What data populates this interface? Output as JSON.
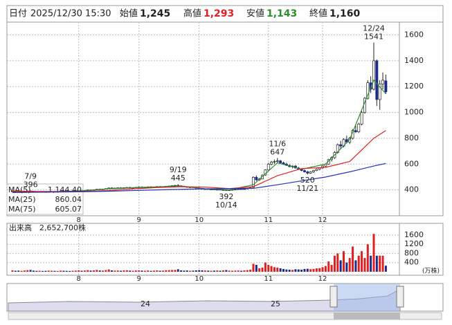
{
  "header": {
    "date_label": "日付",
    "date": "2025/12/30 15:30",
    "open_label": "始値",
    "open": "1,245",
    "high_label": "高値",
    "high": "1,293",
    "low_label": "安値",
    "low": "1,143",
    "close_label": "終値",
    "close": "1,160"
  },
  "chart_data": {
    "type": "candlestick",
    "ylim": [
      200,
      1710
    ],
    "yticks": [
      400,
      600,
      800,
      1000,
      1200,
      1400,
      1600
    ],
    "xticks": [
      {
        "value": 22,
        "label": "8"
      },
      {
        "value": 42,
        "label": "9"
      },
      {
        "value": 62,
        "label": "10"
      },
      {
        "value": 85,
        "label": "11"
      },
      {
        "value": 103,
        "label": "12"
      }
    ],
    "up_color": "#ffffff",
    "down_color": "#1e2a8a",
    "candles": [
      [
        388,
        392,
        384,
        390
      ],
      [
        390,
        393,
        386,
        389
      ],
      [
        389,
        391,
        385,
        387
      ],
      [
        387,
        390,
        383,
        388
      ],
      [
        388,
        392,
        386,
        391
      ],
      [
        391,
        394,
        388,
        392
      ],
      [
        392,
        396,
        389,
        390
      ],
      [
        390,
        392,
        385,
        386
      ],
      [
        386,
        389,
        382,
        384
      ],
      [
        384,
        388,
        381,
        387
      ],
      [
        387,
        390,
        384,
        385
      ],
      [
        385,
        388,
        381,
        383
      ],
      [
        383,
        387,
        380,
        386
      ],
      [
        386,
        390,
        384,
        388
      ],
      [
        388,
        391,
        385,
        386
      ],
      [
        386,
        389,
        383,
        387
      ],
      [
        387,
        392,
        385,
        390
      ],
      [
        390,
        394,
        387,
        389
      ],
      [
        389,
        392,
        385,
        388
      ],
      [
        388,
        391,
        384,
        386
      ],
      [
        386,
        390,
        383,
        389
      ],
      [
        389,
        393,
        386,
        391
      ],
      [
        391,
        396,
        388,
        394
      ],
      [
        394,
        398,
        390,
        392
      ],
      [
        392,
        397,
        389,
        396
      ],
      [
        396,
        402,
        393,
        400
      ],
      [
        400,
        404,
        396,
        398
      ],
      [
        398,
        403,
        395,
        402
      ],
      [
        402,
        408,
        399,
        405
      ],
      [
        405,
        410,
        401,
        403
      ],
      [
        403,
        407,
        399,
        406
      ],
      [
        406,
        412,
        403,
        410
      ],
      [
        410,
        418,
        407,
        415
      ],
      [
        415,
        420,
        410,
        412
      ],
      [
        412,
        417,
        408,
        414
      ],
      [
        414,
        419,
        410,
        416
      ],
      [
        416,
        421,
        412,
        413
      ],
      [
        413,
        418,
        409,
        417
      ],
      [
        417,
        422,
        413,
        419
      ],
      [
        419,
        424,
        415,
        416
      ],
      [
        416,
        420,
        411,
        418
      ],
      [
        418,
        423,
        414,
        420
      ],
      [
        420,
        426,
        416,
        422
      ],
      [
        422,
        427,
        417,
        419
      ],
      [
        419,
        424,
        414,
        421
      ],
      [
        421,
        426,
        417,
        424
      ],
      [
        424,
        428,
        419,
        420
      ],
      [
        420,
        425,
        415,
        423
      ],
      [
        423,
        429,
        419,
        426
      ],
      [
        426,
        430,
        421,
        422
      ],
      [
        422,
        427,
        418,
        425
      ],
      [
        425,
        431,
        421,
        428
      ],
      [
        428,
        433,
        423,
        430
      ],
      [
        430,
        436,
        426,
        433
      ],
      [
        433,
        438,
        428,
        435
      ],
      [
        435,
        445,
        431,
        432
      ],
      [
        432,
        436,
        426,
        428
      ],
      [
        428,
        432,
        422,
        424
      ],
      [
        424,
        428,
        418,
        420
      ],
      [
        420,
        425,
        415,
        422
      ],
      [
        422,
        426,
        416,
        418
      ],
      [
        418,
        422,
        412,
        415
      ],
      [
        415,
        419,
        408,
        410
      ],
      [
        410,
        414,
        404,
        406
      ],
      [
        406,
        410,
        400,
        408
      ],
      [
        408,
        412,
        402,
        404
      ],
      [
        404,
        408,
        398,
        405
      ],
      [
        405,
        409,
        399,
        401
      ],
      [
        401,
        406,
        396,
        403
      ],
      [
        403,
        407,
        397,
        399
      ],
      [
        399,
        403,
        394,
        400
      ],
      [
        400,
        404,
        392,
        396
      ],
      [
        396,
        401,
        393,
        399
      ],
      [
        399,
        404,
        395,
        402
      ],
      [
        402,
        406,
        398,
        404
      ],
      [
        404,
        409,
        400,
        407
      ],
      [
        407,
        411,
        403,
        405
      ],
      [
        405,
        410,
        401,
        408
      ],
      [
        408,
        414,
        405,
        412
      ],
      [
        412,
        418,
        409,
        416
      ],
      [
        420,
        505,
        418,
        498
      ],
      [
        498,
        512,
        470,
        478
      ],
      [
        478,
        492,
        470,
        485
      ],
      [
        485,
        520,
        482,
        515
      ],
      [
        515,
        560,
        510,
        555
      ],
      [
        555,
        610,
        550,
        600
      ],
      [
        600,
        625,
        590,
        615
      ],
      [
        615,
        635,
        600,
        620
      ],
      [
        620,
        647,
        610,
        625
      ],
      [
        625,
        632,
        605,
        610
      ],
      [
        610,
        618,
        595,
        600
      ],
      [
        600,
        610,
        585,
        590
      ],
      [
        590,
        598,
        575,
        580
      ],
      [
        580,
        590,
        568,
        585
      ],
      [
        585,
        592,
        565,
        570
      ],
      [
        570,
        578,
        555,
        560
      ],
      [
        560,
        568,
        545,
        550
      ],
      [
        550,
        558,
        535,
        540
      ],
      [
        540,
        548,
        520,
        530
      ],
      [
        530,
        545,
        525,
        540
      ],
      [
        540,
        555,
        532,
        550
      ],
      [
        550,
        565,
        545,
        560
      ],
      [
        560,
        575,
        552,
        570
      ],
      [
        570,
        590,
        565,
        585
      ],
      [
        585,
        605,
        575,
        600
      ],
      [
        600,
        640,
        595,
        635
      ],
      [
        635,
        660,
        620,
        650
      ],
      [
        650,
        700,
        640,
        690
      ],
      [
        690,
        760,
        680,
        750
      ],
      [
        750,
        780,
        720,
        740
      ],
      [
        740,
        800,
        730,
        790
      ],
      [
        790,
        820,
        760,
        770
      ],
      [
        770,
        810,
        755,
        800
      ],
      [
        800,
        870,
        790,
        860
      ],
      [
        860,
        900,
        840,
        850
      ],
      [
        850,
        920,
        840,
        910
      ],
      [
        910,
        1010,
        900,
        1000
      ],
      [
        1000,
        1120,
        990,
        1110
      ],
      [
        1110,
        1250,
        1100,
        1230
      ],
      [
        1230,
        1280,
        1150,
        1180
      ],
      [
        1180,
        1541,
        1170,
        1400
      ],
      [
        1400,
        1410,
        1050,
        1100
      ],
      [
        1100,
        1250,
        1020,
        1220
      ],
      [
        1220,
        1310,
        1180,
        1250
      ],
      [
        1245,
        1293,
        1143,
        1160
      ]
    ],
    "series": [
      {
        "name": "MA(5)",
        "color": "#2e8b2e",
        "value_label": "1,144.40",
        "x": [
          0,
          8,
          16,
          24,
          32,
          40,
          48,
          56,
          64,
          72,
          80,
          88,
          96,
          104,
          112,
          120,
          124
        ],
        "values": [
          389,
          387,
          388,
          394,
          408,
          417,
          424,
          430,
          409,
          400,
          440,
          610,
          560,
          600,
          790,
          1250,
          1144.4
        ]
      },
      {
        "name": "MA(25)",
        "color": "#e02020",
        "value_label": "860.04",
        "x": [
          0,
          8,
          16,
          24,
          32,
          40,
          48,
          56,
          64,
          72,
          80,
          88,
          96,
          104,
          112,
          120,
          124
        ],
        "values": [
          392,
          388,
          387,
          389,
          395,
          408,
          418,
          425,
          422,
          410,
          425,
          510,
          565,
          575,
          620,
          800,
          860.04
        ]
      },
      {
        "name": "MA(75)",
        "color": "#2030c0",
        "value_label": "605.07",
        "x": [
          0,
          8,
          16,
          24,
          32,
          40,
          48,
          56,
          64,
          72,
          80,
          88,
          96,
          104,
          112,
          120,
          124
        ],
        "values": [
          380,
          382,
          384,
          386,
          390,
          395,
          400,
          405,
          408,
          410,
          412,
          440,
          470,
          500,
          540,
          585,
          605.07
        ]
      }
    ],
    "annotations": [
      {
        "date": "7/9",
        "value": 396
      },
      {
        "date": "9/19",
        "value": 445
      },
      {
        "date": "10/14",
        "value": 392
      },
      {
        "date": "11/6",
        "value": 647
      },
      {
        "date": "11/21",
        "value": 520
      },
      {
        "date": "12/24",
        "value": 1541
      }
    ],
    "volume": {
      "label": "出来高",
      "last_label": "2,652,700株",
      "unit": "(万株)",
      "ylim": [
        0,
        1750
      ],
      "yticks": [
        400,
        800,
        1200,
        1600
      ],
      "values": [
        60,
        45,
        50,
        40,
        55,
        70,
        80,
        50,
        40,
        45,
        35,
        40,
        50,
        45,
        40,
        35,
        50,
        45,
        40,
        35,
        45,
        50,
        60,
        45,
        55,
        70,
        50,
        60,
        80,
        55,
        50,
        70,
        100,
        60,
        50,
        55,
        45,
        60,
        65,
        50,
        45,
        55,
        60,
        50,
        45,
        55,
        40,
        50,
        60,
        45,
        50,
        65,
        70,
        75,
        80,
        110,
        60,
        50,
        55,
        45,
        50,
        60,
        70,
        60,
        55,
        50,
        45,
        50,
        55,
        45,
        60,
        75,
        50,
        45,
        50,
        55,
        45,
        60,
        70,
        90,
        350,
        300,
        150,
        180,
        400,
        300,
        250,
        200,
        180,
        150,
        120,
        100,
        90,
        80,
        110,
        100,
        90,
        120,
        130,
        110,
        120,
        150,
        160,
        200,
        250,
        450,
        300,
        700,
        800,
        500,
        900,
        400,
        600,
        1100,
        500,
        700,
        900,
        600,
        1200,
        700,
        1650,
        700,
        700,
        700,
        265.27
      ]
    }
  },
  "navigator": {
    "labels": [
      "24",
      "25"
    ]
  }
}
